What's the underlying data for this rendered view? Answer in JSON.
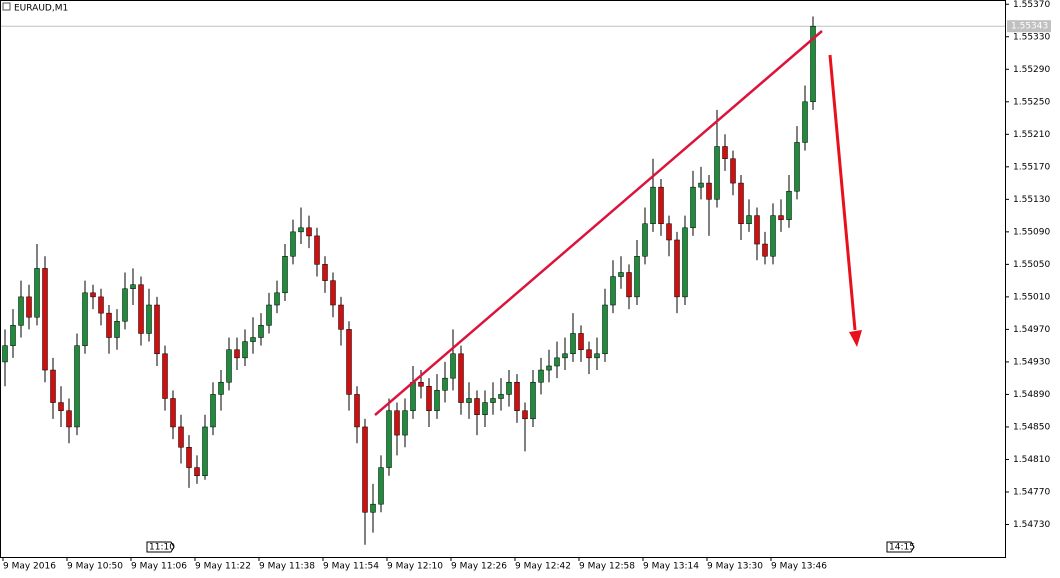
{
  "chart_data": {
    "type": "candlestick",
    "title": "EURAUD,M1",
    "ylim": [
      1.5469,
      1.55374
    ],
    "yticks": [
      {
        "value": 1.5537,
        "label": "1.55370"
      },
      {
        "value": 1.5533,
        "label": "1.55330"
      },
      {
        "value": 1.5529,
        "label": "1.55290"
      },
      {
        "value": 1.5525,
        "label": "1.55250"
      },
      {
        "value": 1.5521,
        "label": "1.55210"
      },
      {
        "value": 1.5517,
        "label": "1.55170"
      },
      {
        "value": 1.5513,
        "label": "1.55130"
      },
      {
        "value": 1.5509,
        "label": "1.55090"
      },
      {
        "value": 1.5505,
        "label": "1.55050"
      },
      {
        "value": 1.5501,
        "label": "1.55010"
      },
      {
        "value": 1.5497,
        "label": "1.54970"
      },
      {
        "value": 1.5493,
        "label": "1.54930"
      },
      {
        "value": 1.5489,
        "label": "1.54890"
      },
      {
        "value": 1.5485,
        "label": "1.54850"
      },
      {
        "value": 1.5481,
        "label": "1.54810"
      },
      {
        "value": 1.5477,
        "label": "1.54770"
      },
      {
        "value": 1.5473,
        "label": "1.54730"
      }
    ],
    "current_price": {
      "value": 1.55343,
      "label": "1.55343"
    },
    "categories": [
      "9 May 2016",
      "9 May 10:50",
      "9 May 11:06",
      "9 May 11:22",
      "9 May 11:38",
      "9 May 11:54",
      "9 May 12:10",
      "9 May 12:26",
      "9 May 12:42",
      "9 May 12:58",
      "9 May 13:14",
      "9 May 13:30",
      "9 May 13:46"
    ],
    "time_markers": [
      "11:10",
      "14:15"
    ],
    "up_color": "#1e8c3a",
    "down_color": "#d01010",
    "wick_color": "#000000",
    "candles": [
      [
        1.5493,
        1.5497,
        1.549,
        1.5495
      ],
      [
        1.5495,
        1.54995,
        1.54935,
        1.54975
      ],
      [
        1.54975,
        1.5503,
        1.5496,
        1.5501
      ],
      [
        1.5501,
        1.55025,
        1.5497,
        1.54985
      ],
      [
        1.54985,
        1.55075,
        1.54975,
        1.55045
      ],
      [
        1.55045,
        1.5506,
        1.54905,
        1.5492
      ],
      [
        1.5492,
        1.54935,
        1.5486,
        1.5488
      ],
      [
        1.5488,
        1.549,
        1.5485,
        1.5487
      ],
      [
        1.5487,
        1.54885,
        1.5483,
        1.5485
      ],
      [
        1.5485,
        1.54965,
        1.5484,
        1.5495
      ],
      [
        1.5495,
        1.5503,
        1.5494,
        1.55015
      ],
      [
        1.55015,
        1.55025,
        1.54995,
        1.5501
      ],
      [
        1.5501,
        1.5502,
        1.54975,
        1.5499
      ],
      [
        1.5499,
        1.55,
        1.5494,
        1.5496
      ],
      [
        1.5496,
        1.54995,
        1.54945,
        1.5498
      ],
      [
        1.5498,
        1.5504,
        1.5497,
        1.5502
      ],
      [
        1.5502,
        1.55045,
        1.55,
        1.55025
      ],
      [
        1.55025,
        1.55035,
        1.5495,
        1.54965
      ],
      [
        1.54965,
        1.5502,
        1.54955,
        1.55
      ],
      [
        1.55,
        1.5501,
        1.54925,
        1.5494
      ],
      [
        1.5494,
        1.5495,
        1.5487,
        1.54885
      ],
      [
        1.54885,
        1.54895,
        1.54835,
        1.5485
      ],
      [
        1.5485,
        1.54865,
        1.54805,
        1.54825
      ],
      [
        1.54825,
        1.5484,
        1.54775,
        1.548
      ],
      [
        1.548,
        1.54815,
        1.5478,
        1.5479
      ],
      [
        1.5479,
        1.54865,
        1.54785,
        1.5485
      ],
      [
        1.5485,
        1.54905,
        1.5484,
        1.5489
      ],
      [
        1.5489,
        1.5492,
        1.5487,
        1.54905
      ],
      [
        1.54905,
        1.5496,
        1.54895,
        1.54945
      ],
      [
        1.54945,
        1.5496,
        1.5492,
        1.54935
      ],
      [
        1.54935,
        1.5497,
        1.54925,
        1.54955
      ],
      [
        1.54955,
        1.54985,
        1.5494,
        1.5496
      ],
      [
        1.5496,
        1.5499,
        1.5495,
        1.54975
      ],
      [
        1.54975,
        1.55015,
        1.54965,
        1.55
      ],
      [
        1.55,
        1.5503,
        1.5499,
        1.55015
      ],
      [
        1.55015,
        1.55075,
        1.55005,
        1.5506
      ],
      [
        1.5506,
        1.55105,
        1.5505,
        1.5509
      ],
      [
        1.5509,
        1.5512,
        1.55075,
        1.55095
      ],
      [
        1.55095,
        1.5511,
        1.5507,
        1.55085
      ],
      [
        1.55085,
        1.55095,
        1.55035,
        1.5505
      ],
      [
        1.5505,
        1.5506,
        1.55015,
        1.5503
      ],
      [
        1.5503,
        1.5504,
        1.54985,
        1.55
      ],
      [
        1.55,
        1.5501,
        1.5495,
        1.5497
      ],
      [
        1.5497,
        1.5498,
        1.5487,
        1.5489
      ],
      [
        1.5489,
        1.549,
        1.5483,
        1.5485
      ],
      [
        1.5485,
        1.5486,
        1.54705,
        1.54745
      ],
      [
        1.54745,
        1.5478,
        1.5472,
        1.54755
      ],
      [
        1.54755,
        1.54815,
        1.54745,
        1.548
      ],
      [
        1.548,
        1.54885,
        1.5479,
        1.5487
      ],
      [
        1.5487,
        1.5488,
        1.54815,
        1.5484
      ],
      [
        1.5484,
        1.54885,
        1.54825,
        1.5487
      ],
      [
        1.5487,
        1.54925,
        1.5486,
        1.54905
      ],
      [
        1.54905,
        1.5492,
        1.54885,
        1.549
      ],
      [
        1.549,
        1.5491,
        1.5485,
        1.5487
      ],
      [
        1.5487,
        1.54915,
        1.5486,
        1.54895
      ],
      [
        1.54895,
        1.5493,
        1.5488,
        1.5491
      ],
      [
        1.5491,
        1.5497,
        1.54895,
        1.5494
      ],
      [
        1.5494,
        1.5495,
        1.54865,
        1.5488
      ],
      [
        1.5488,
        1.54905,
        1.5486,
        1.54885
      ],
      [
        1.54885,
        1.54895,
        1.5484,
        1.54865
      ],
      [
        1.54865,
        1.54895,
        1.5485,
        1.5488
      ],
      [
        1.5488,
        1.54905,
        1.54865,
        1.54885
      ],
      [
        1.54885,
        1.5491,
        1.5487,
        1.5489
      ],
      [
        1.5489,
        1.5492,
        1.54875,
        1.54905
      ],
      [
        1.54905,
        1.54915,
        1.54855,
        1.5487
      ],
      [
        1.5487,
        1.5488,
        1.5482,
        1.5486
      ],
      [
        1.5486,
        1.5492,
        1.5485,
        1.54905
      ],
      [
        1.54905,
        1.54935,
        1.5489,
        1.5492
      ],
      [
        1.5492,
        1.54945,
        1.54905,
        1.54925
      ],
      [
        1.54925,
        1.54955,
        1.5491,
        1.54935
      ],
      [
        1.54935,
        1.5496,
        1.5492,
        1.5494
      ],
      [
        1.5494,
        1.5499,
        1.5493,
        1.54965
      ],
      [
        1.54965,
        1.54975,
        1.5493,
        1.54945
      ],
      [
        1.54945,
        1.54955,
        1.54915,
        1.54935
      ],
      [
        1.54935,
        1.5496,
        1.5492,
        1.5494
      ],
      [
        1.5494,
        1.5502,
        1.5493,
        1.55
      ],
      [
        1.55,
        1.55055,
        1.5499,
        1.55035
      ],
      [
        1.55035,
        1.5506,
        1.5502,
        1.5504
      ],
      [
        1.5504,
        1.5505,
        1.54995,
        1.5501
      ],
      [
        1.5501,
        1.5508,
        1.55,
        1.5506
      ],
      [
        1.5506,
        1.5512,
        1.5505,
        1.551
      ],
      [
        1.551,
        1.5518,
        1.5509,
        1.55145
      ],
      [
        1.55145,
        1.55155,
        1.55085,
        1.551
      ],
      [
        1.551,
        1.5511,
        1.5506,
        1.5508
      ],
      [
        1.5508,
        1.5509,
        1.5499,
        1.5501
      ],
      [
        1.5501,
        1.5511,
        1.55,
        1.55095
      ],
      [
        1.55095,
        1.55165,
        1.55085,
        1.55145
      ],
      [
        1.55145,
        1.5517,
        1.5513,
        1.5515
      ],
      [
        1.5515,
        1.5516,
        1.55085,
        1.5513
      ],
      [
        1.5513,
        1.5524,
        1.5512,
        1.55195
      ],
      [
        1.55195,
        1.5521,
        1.55165,
        1.5518
      ],
      [
        1.5518,
        1.5519,
        1.55135,
        1.5515
      ],
      [
        1.5515,
        1.5516,
        1.5508,
        1.551
      ],
      [
        1.551,
        1.5513,
        1.5509,
        1.5511
      ],
      [
        1.5511,
        1.5512,
        1.55055,
        1.55075
      ],
      [
        1.55075,
        1.5509,
        1.5505,
        1.5506
      ],
      [
        1.5506,
        1.55125,
        1.5505,
        1.5511
      ],
      [
        1.5511,
        1.5513,
        1.5509,
        1.55105
      ],
      [
        1.55105,
        1.5516,
        1.55095,
        1.5514
      ],
      [
        1.5514,
        1.5522,
        1.5513,
        1.552
      ],
      [
        1.552,
        1.5527,
        1.5519,
        1.5525
      ],
      [
        1.5525,
        1.55355,
        1.5524,
        1.55343
      ]
    ]
  }
}
